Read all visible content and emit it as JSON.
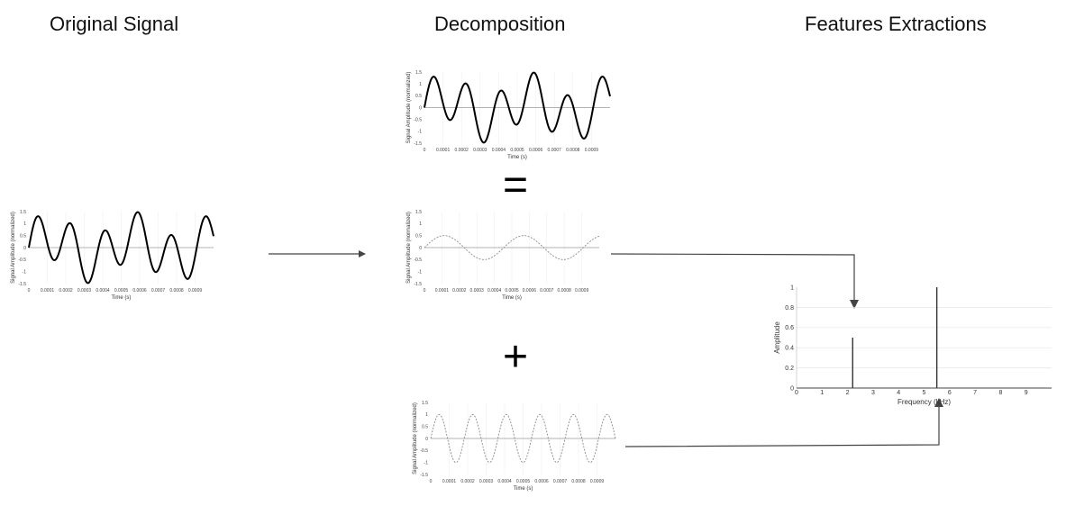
{
  "headings": {
    "original": "Original Signal",
    "decomposition": "Decomposition",
    "features": "Features Extractions"
  },
  "operators": {
    "equals": "=",
    "plus": "+"
  },
  "time_plot": {
    "y_label": "Signal Amplitude (normalized)",
    "x_label": "Time (s)",
    "x_ticks": [
      "0",
      "0.0001",
      "0.0002",
      "0.0003",
      "0.0004",
      "0.0005",
      "0.0006",
      "0.0007",
      "0.0008",
      "0.0009"
    ],
    "y_ticks": [
      "1.5",
      "1",
      "0.5",
      "0",
      "-0.5",
      "-1",
      "-1.5"
    ]
  },
  "freq_plot": {
    "y_label": "Amplitude",
    "x_label": "Frequency (kHz)",
    "x_ticks": [
      "0",
      "1",
      "2",
      "3",
      "4",
      "5",
      "6",
      "7",
      "8",
      "9"
    ],
    "y_ticks": [
      "1",
      "0.8",
      "0.6",
      "0.4",
      "0.2",
      "0"
    ]
  },
  "chart_data": [
    {
      "type": "line",
      "name": "original",
      "xlabel": "Time (s)",
      "ylabel": "Signal Amplitude (normalized)",
      "xlim": [
        0,
        0.001
      ],
      "ylim": [
        -1.5,
        1.5
      ],
      "series": [
        {
          "components": [
            {
              "amplitude": 0.5,
              "freq_khz": 2.2
            },
            {
              "amplitude": 1.0,
              "freq_khz": 5.5
            }
          ],
          "style": "solid"
        }
      ]
    },
    {
      "type": "line",
      "name": "decomposition-sum",
      "xlabel": "Time (s)",
      "ylabel": "Signal Amplitude (normalized)",
      "xlim": [
        0,
        0.001
      ],
      "ylim": [
        -1.5,
        1.5
      ],
      "series": [
        {
          "components": [
            {
              "amplitude": 0.5,
              "freq_khz": 2.2
            },
            {
              "amplitude": 1.0,
              "freq_khz": 5.5
            }
          ],
          "style": "solid"
        }
      ]
    },
    {
      "type": "line",
      "name": "component-low",
      "xlabel": "Time (s)",
      "ylabel": "Signal Amplitude (normalized)",
      "xlim": [
        0,
        0.001
      ],
      "ylim": [
        -1.5,
        1.5
      ],
      "series": [
        {
          "components": [
            {
              "amplitude": 0.5,
              "freq_khz": 2.2
            }
          ],
          "style": "dashed"
        }
      ]
    },
    {
      "type": "line",
      "name": "component-high",
      "xlabel": "Time (s)",
      "ylabel": "Signal Amplitude (normalized)",
      "xlim": [
        0,
        0.001
      ],
      "ylim": [
        -1.5,
        1.5
      ],
      "series": [
        {
          "components": [
            {
              "amplitude": 1.0,
              "freq_khz": 5.5
            }
          ],
          "style": "dashed"
        }
      ]
    },
    {
      "type": "bar",
      "name": "spectrum",
      "xlabel": "Frequency (kHz)",
      "ylabel": "Amplitude",
      "xlim": [
        0,
        10
      ],
      "ylim": [
        0,
        1
      ],
      "x": [
        2.2,
        5.5
      ],
      "values": [
        0.5,
        1.0
      ]
    }
  ]
}
